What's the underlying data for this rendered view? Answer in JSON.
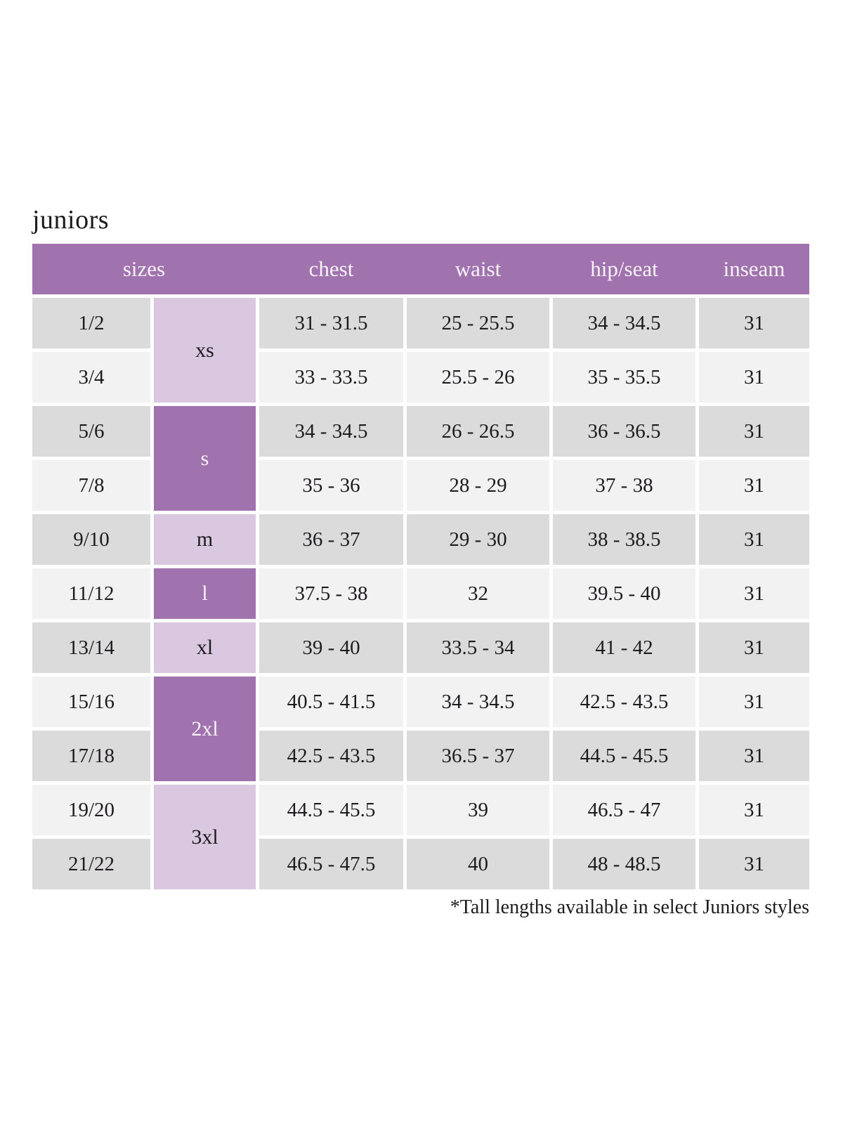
{
  "page": {
    "title": "juniors",
    "footnote": "*Tall lengths available in select Juniors styles"
  },
  "colors": {
    "header_purple": "#a173ae",
    "light_lavender": "#d9c8df",
    "row_gray": "#dbdbdb",
    "row_light": "#f3f2f3",
    "header_text": "#f8f2f9",
    "body_text": "#1d1b1d"
  },
  "table": {
    "headers": [
      "sizes",
      "chest",
      "waist",
      "hip/seat",
      "inseam"
    ],
    "size_groups": [
      {
        "label": "xs",
        "spans_rows": 2
      },
      {
        "label": "s",
        "spans_rows": 2
      },
      {
        "label": "m",
        "spans_rows": 1
      },
      {
        "label": "l",
        "spans_rows": 1
      },
      {
        "label": "xl",
        "spans_rows": 1
      },
      {
        "label": "2xl",
        "spans_rows": 2
      },
      {
        "label": "3xl",
        "spans_rows": 2
      }
    ],
    "rows": [
      {
        "size": "1/2",
        "chest": "31 - 31.5",
        "waist": "25 - 25.5",
        "hip_seat": "34 - 34.5",
        "inseam": "31"
      },
      {
        "size": "3/4",
        "chest": "33 - 33.5",
        "waist": "25.5 - 26",
        "hip_seat": "35 - 35.5",
        "inseam": "31"
      },
      {
        "size": "5/6",
        "chest": "34 - 34.5",
        "waist": "26 - 26.5",
        "hip_seat": "36 - 36.5",
        "inseam": "31"
      },
      {
        "size": "7/8",
        "chest": "35 - 36",
        "waist": "28 - 29",
        "hip_seat": "37 - 38",
        "inseam": "31"
      },
      {
        "size": "9/10",
        "chest": "36 - 37",
        "waist": "29 - 30",
        "hip_seat": "38 - 38.5",
        "inseam": "31"
      },
      {
        "size": "11/12",
        "chest": "37.5 - 38",
        "waist": "32",
        "hip_seat": "39.5 - 40",
        "inseam": "31"
      },
      {
        "size": "13/14",
        "chest": "39 - 40",
        "waist": "33.5 - 34",
        "hip_seat": "41 - 42",
        "inseam": "31"
      },
      {
        "size": "15/16",
        "chest": "40.5 - 41.5",
        "waist": "34 - 34.5",
        "hip_seat": "42.5 - 43.5",
        "inseam": "31"
      },
      {
        "size": "17/18",
        "chest": "42.5 - 43.5",
        "waist": "36.5 - 37",
        "hip_seat": "44.5 - 45.5",
        "inseam": "31"
      },
      {
        "size": "19/20",
        "chest": "44.5 - 45.5",
        "waist": "39",
        "hip_seat": "46.5 - 47",
        "inseam": "31"
      },
      {
        "size": "21/22",
        "chest": "46.5 - 47.5",
        "waist": "40",
        "hip_seat": "48 - 48.5",
        "inseam": "31"
      }
    ]
  }
}
